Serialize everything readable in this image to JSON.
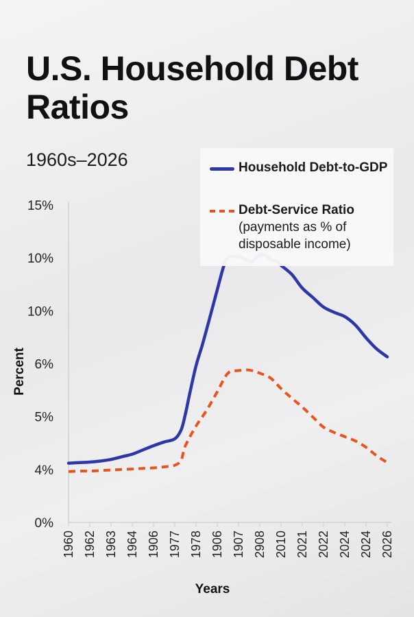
{
  "title": "U.S. Household Debt Ratios",
  "subtitle": "1960s–2026",
  "colors": {
    "debt_to_gdp": "#2e37a8",
    "debt_service": "#e8541c",
    "axis": "#d2d2d4",
    "text": "#111111"
  },
  "chart_data": {
    "type": "line",
    "x_categories": [
      "1960",
      "1962",
      "1963",
      "1964",
      "1906",
      "1977",
      "1978",
      "1906",
      "1907",
      "2908",
      "2010",
      "2021",
      "2022",
      "2024",
      "2024",
      "2026"
    ],
    "y_tick_labels": [
      "0%",
      "4%",
      "5%",
      "6%",
      "10%",
      "10%",
      "15%"
    ],
    "ylabel": "Percent",
    "xlabel": "Years",
    "grid": false,
    "legend_position": "top-right",
    "series": [
      {
        "name": "Household Debt-to-GDP",
        "style": "solid",
        "x_index": [
          0.0,
          0.5,
          1.0,
          1.5,
          2.0,
          2.5,
          3.0,
          3.5,
          4.0,
          4.5,
          5.0,
          5.3,
          5.5,
          5.7,
          6.0,
          6.3,
          6.6,
          7.0,
          7.3,
          7.5,
          7.7,
          8.0,
          8.3,
          8.6,
          9.0,
          9.3,
          9.5,
          9.8,
          10.0,
          10.5,
          11.0,
          11.5,
          12.0,
          12.5,
          13.0,
          13.5,
          14.0,
          14.5,
          15.0
        ],
        "y_level": [
          1.12,
          1.13,
          1.14,
          1.16,
          1.19,
          1.24,
          1.29,
          1.37,
          1.45,
          1.52,
          1.58,
          1.75,
          2.05,
          2.43,
          2.96,
          3.36,
          3.8,
          4.4,
          4.84,
          5.01,
          5.03,
          5.02,
          4.98,
          4.93,
          5.06,
          5.05,
          4.97,
          4.93,
          4.86,
          4.69,
          4.43,
          4.25,
          4.07,
          3.97,
          3.89,
          3.73,
          3.49,
          3.28,
          3.13
        ],
        "y_scale": "tick index (0 = 0%, 1 = 4%, 2 = 5%, 3 = 6%, 4 = 10%, 5 = 10%, 6 = 15%)"
      },
      {
        "name": "Debt-Service Ratio",
        "description": "(payments as % of disposable income)",
        "style": "dashed",
        "x_index": [
          0.0,
          0.5,
          1.0,
          1.5,
          2.0,
          2.5,
          3.0,
          3.5,
          4.0,
          4.5,
          5.0,
          5.3,
          5.5,
          6.0,
          6.5,
          7.0,
          7.5,
          8.0,
          8.5,
          9.0,
          9.5,
          10.0,
          10.5,
          11.0,
          11.5,
          12.0,
          12.5,
          13.0,
          13.5,
          14.0,
          14.5,
          15.0
        ],
        "y_level": [
          0.96,
          0.97,
          0.97,
          0.98,
          0.99,
          1.0,
          1.01,
          1.02,
          1.03,
          1.05,
          1.08,
          1.18,
          1.45,
          1.82,
          2.12,
          2.47,
          2.82,
          2.87,
          2.88,
          2.82,
          2.73,
          2.53,
          2.35,
          2.18,
          1.99,
          1.8,
          1.7,
          1.62,
          1.54,
          1.42,
          1.26,
          1.13
        ],
        "y_scale": "tick index (0 = 0%, 1 = 4%, 2 = 5%, 3 = 6%, 4 = 10%, 5 = 10%, 6 = 15%)"
      }
    ]
  }
}
